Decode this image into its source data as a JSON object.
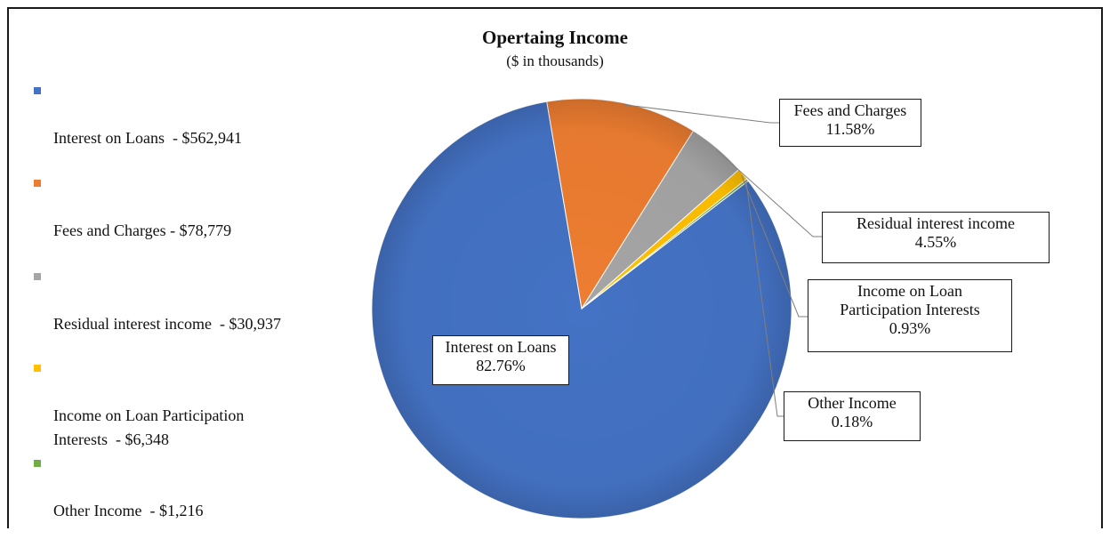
{
  "chart_data": {
    "type": "pie",
    "title": "Opertaing Income",
    "subtitle": "($ in thousands)",
    "slices": [
      {
        "name": "Interest on Loans",
        "legend_label": "Interest on Loans  - $562,941",
        "value": 562941,
        "percent_label": "82.76%",
        "color": "#4472c4"
      },
      {
        "name": "Fees and Charges",
        "legend_label": "Fees and Charges - $78,779",
        "value": 78779,
        "percent_label": "11.58%",
        "color": "#ed7d31"
      },
      {
        "name": "Residual interest income",
        "legend_label": "Residual interest income  - $30,937",
        "value": 30937,
        "percent_label": "4.55%",
        "color": "#a5a5a5"
      },
      {
        "name": "Income on Loan Participation Interests",
        "legend_label": "Income on Loan Participation\nInterests  - $6,348",
        "value": 6348,
        "percent_label": "0.93%",
        "color": "#ffc000"
      },
      {
        "name": "Other Income",
        "legend_label": "Other Income  - $1,216",
        "value": 1216,
        "percent_label": "0.18%",
        "color": "#70ad47"
      }
    ],
    "data_labels": [
      {
        "text": "Interest on Loans\n82.76%"
      },
      {
        "text": "Fees and Charges\n11.58%"
      },
      {
        "text": "Residual interest income\n4.55%"
      },
      {
        "text": "Income on Loan\nParticipation Interests\n0.93%"
      },
      {
        "text": "Other Income\n0.18%"
      }
    ],
    "legend_position": "left"
  }
}
